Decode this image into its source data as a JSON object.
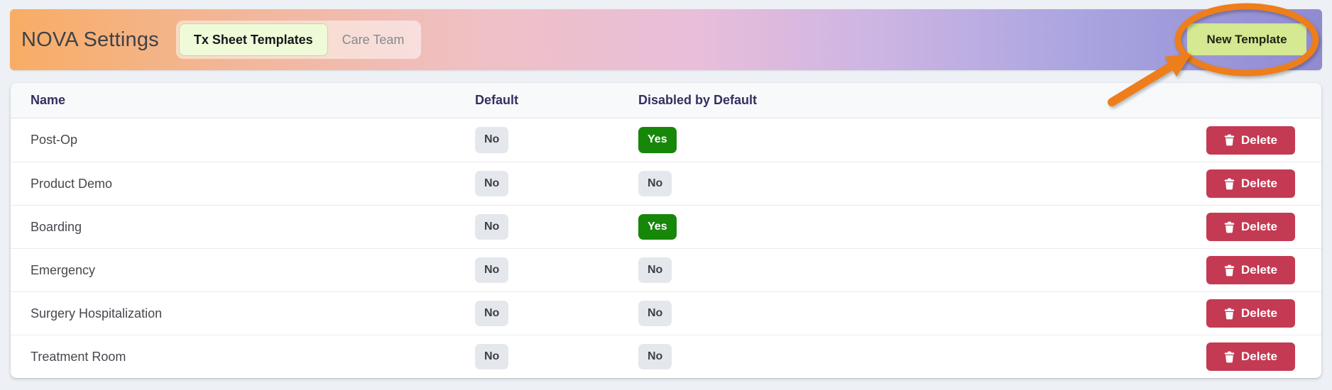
{
  "page": {
    "background": "#edf0f4"
  },
  "header": {
    "title": "NOVA Settings",
    "gradient_colors": [
      "#f8ad65",
      "#efc0c5",
      "#e9bed9",
      "#a9a4e0",
      "#8f8bd1"
    ],
    "tabs": [
      {
        "label": "Tx Sheet Templates",
        "active": true
      },
      {
        "label": "Care Team",
        "active": false
      }
    ],
    "new_template_button": {
      "label": "New Template",
      "background": "#d5e892"
    }
  },
  "annotation": {
    "shape": "ellipse-and-arrow",
    "color": "#ee7e1b",
    "target": "New Template button"
  },
  "table": {
    "columns": [
      "Name",
      "Default",
      "Disabled by Default"
    ],
    "delete_label": "Delete",
    "badge_colors": {
      "yes_background": "#17870a",
      "yes_text": "#ffffff",
      "no_background": "#e4e7ec",
      "no_text": "#3d4145"
    },
    "delete_button_color": "#c43a53",
    "rows": [
      {
        "name": "Post-Op",
        "default": "No",
        "disabled_by_default": "Yes"
      },
      {
        "name": "Product Demo",
        "default": "No",
        "disabled_by_default": "No"
      },
      {
        "name": "Boarding",
        "default": "No",
        "disabled_by_default": "Yes"
      },
      {
        "name": "Emergency",
        "default": "No",
        "disabled_by_default": "No"
      },
      {
        "name": "Surgery Hospitalization",
        "default": "No",
        "disabled_by_default": "No"
      },
      {
        "name": "Treatment Room",
        "default": "No",
        "disabled_by_default": "No"
      }
    ]
  }
}
